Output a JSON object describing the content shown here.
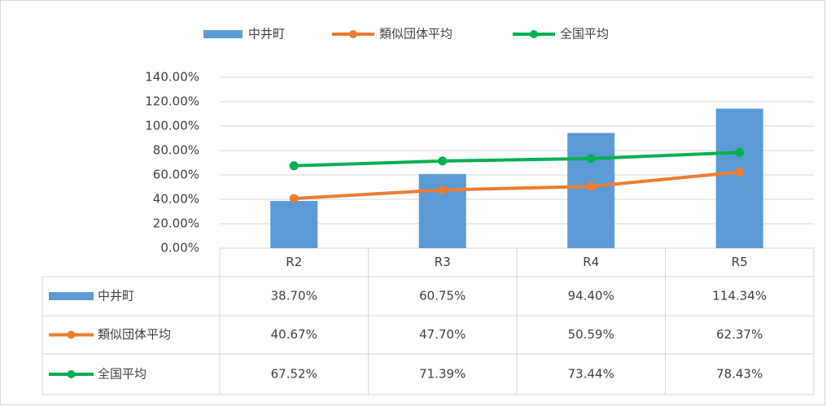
{
  "chart_data": {
    "type": "bar",
    "categories": [
      "R2",
      "R3",
      "R4",
      "R5"
    ],
    "series": [
      {
        "name": "中井町",
        "type": "bar",
        "color": "#5b9bd5",
        "values": [
          38.7,
          60.75,
          94.4,
          114.34
        ],
        "value_labels": [
          "38.70%",
          "60.75%",
          "94.40%",
          "114.34%"
        ]
      },
      {
        "name": "類似団体平均",
        "type": "line",
        "color": "#ed7d31",
        "values": [
          40.67,
          47.7,
          50.59,
          62.37
        ],
        "value_labels": [
          "40.67%",
          "47.70%",
          "50.59%",
          "62.37%"
        ]
      },
      {
        "name": "全国平均",
        "type": "line",
        "color": "#00b050",
        "values": [
          67.52,
          71.39,
          73.44,
          78.43
        ],
        "value_labels": [
          "67.52%",
          "71.39%",
          "73.44%",
          "78.43%"
        ]
      }
    ],
    "ylim": [
      0,
      140
    ],
    "yticks": [
      {
        "value": 0,
        "label": "0.00%"
      },
      {
        "value": 20,
        "label": "20.00%"
      },
      {
        "value": 40,
        "label": "40.00%"
      },
      {
        "value": 60,
        "label": "60.00%"
      },
      {
        "value": 80,
        "label": "80.00%"
      },
      {
        "value": 100,
        "label": "100.00%"
      },
      {
        "value": 120,
        "label": "120.00%"
      },
      {
        "value": 140,
        "label": "140.00%"
      }
    ],
    "grid": true,
    "legend": "top",
    "data_table": true
  }
}
